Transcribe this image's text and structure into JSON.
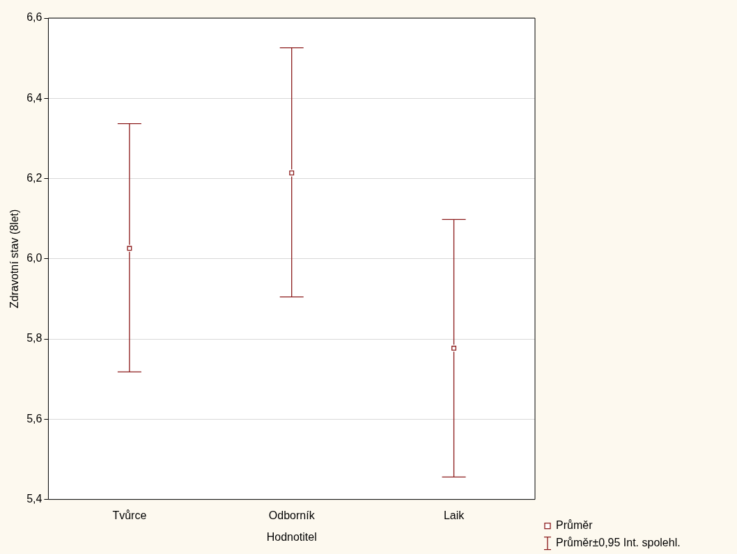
{
  "chart_data": {
    "type": "scatter",
    "xlabel": "Hodnotitel",
    "ylabel": "Zdravotní stav (8let)",
    "categories": [
      "Tvůrce",
      "Odborník",
      "Laik"
    ],
    "series": [
      {
        "name": "Průměr",
        "color": "#8b1a1a",
        "values": [
          6.026,
          6.214,
          5.777
        ],
        "errors": [
          [
            5.718,
            6.337
          ],
          [
            5.905,
            6.526
          ],
          [
            5.456,
            6.098
          ]
        ]
      }
    ],
    "ylim": [
      5.4,
      6.6
    ],
    "yticks": [
      {
        "value": 5.4,
        "label": "5,4"
      },
      {
        "value": 5.6,
        "label": "5,6"
      },
      {
        "value": 5.8,
        "label": "5,8"
      },
      {
        "value": 6.0,
        "label": "6,0"
      },
      {
        "value": 6.2,
        "label": "6,2"
      },
      {
        "value": 6.4,
        "label": "6,4"
      },
      {
        "value": 6.6,
        "label": "6,6"
      }
    ],
    "grid": "y",
    "legend": "bottom right",
    "marker": "square",
    "annotations": [
      "Průměr±0,95 Int. spolehl."
    ]
  }
}
